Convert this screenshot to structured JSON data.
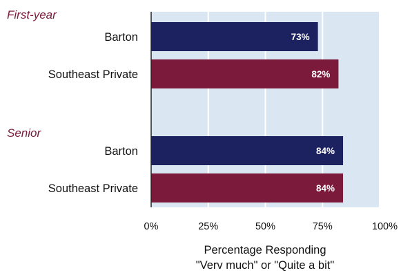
{
  "chart_data": {
    "type": "bar",
    "orientation": "horizontal",
    "groups": [
      {
        "label": "First-year",
        "bars": [
          {
            "category": "Barton",
            "value": 73,
            "value_label": "73%",
            "color": "#1c2260"
          },
          {
            "category": "Southeast Private",
            "value": 82,
            "value_label": "82%",
            "color": "#7c1a3c"
          }
        ]
      },
      {
        "label": "Senior",
        "bars": [
          {
            "category": "Barton",
            "value": 84,
            "value_label": "84%",
            "color": "#1c2260"
          },
          {
            "category": "Southeast Private",
            "value": 84,
            "value_label": "84%",
            "color": "#7c1a3c"
          }
        ]
      }
    ],
    "x_ticks": [
      "0%",
      "25%",
      "50%",
      "75%",
      "100%"
    ],
    "xlim": [
      0,
      100
    ],
    "xlabel_lines": [
      "Percentage Responding",
      "\"Verv much\" or \"Quite a bit\""
    ],
    "grid": true,
    "colors": {
      "group_label": "#7c1a3c",
      "plot_background": "#dbe6f3",
      "gridline": "#ffffff",
      "axis": "#222222"
    }
  }
}
